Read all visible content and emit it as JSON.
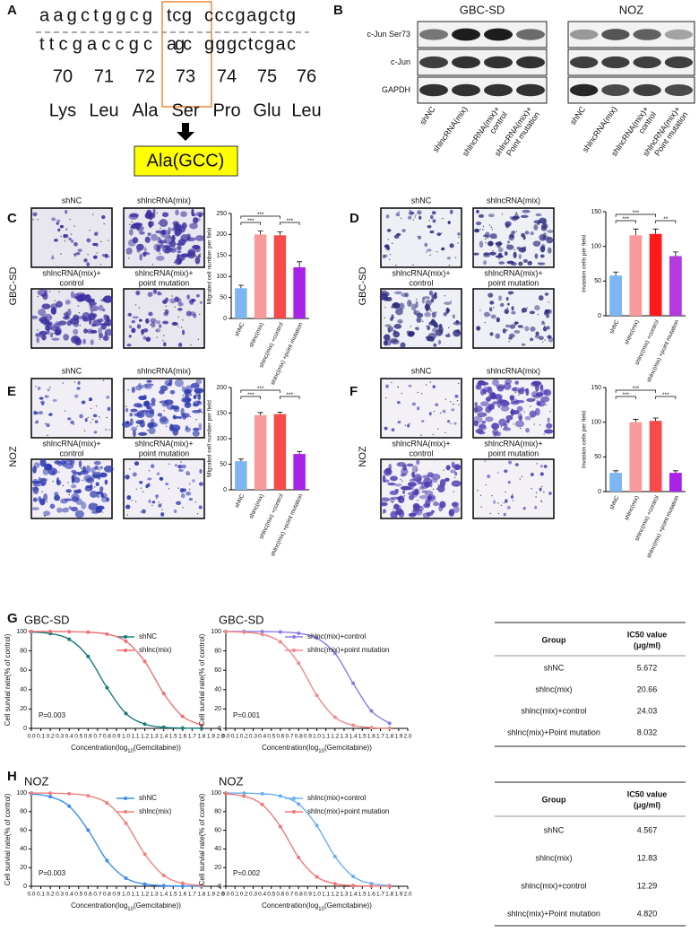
{
  "panel_labels": [
    "A",
    "B",
    "C",
    "D",
    "E",
    "F",
    "G",
    "H"
  ],
  "sequence": {
    "coding": [
      "aagctggcg",
      "tcg",
      "cccgagctg"
    ],
    "complement": [
      "ttcgaccgc",
      "agc",
      "gggctcgac"
    ],
    "codons": [
      70,
      71,
      72,
      73,
      74,
      75,
      76
    ],
    "amino_acids": [
      "Lys",
      "Leu",
      "Ala",
      "Ser",
      "Pro",
      "Glu",
      "Leu"
    ],
    "mutation": "Ala(GCC)"
  },
  "western_blot": {
    "cell_lines": [
      "GBC-SD",
      "NOZ"
    ],
    "proteins": [
      "c-Jun Ser73",
      "c-Jun",
      "GAPDH"
    ],
    "lanes": [
      [
        "shNC"
      ],
      [
        "shlncRNA(mix)"
      ],
      [
        "shlncRNA(mix)+",
        "control"
      ],
      [
        "shlncRNA(mix)+",
        "Point mutation"
      ]
    ]
  },
  "micrographs": [
    {
      "row_label": "GBC-SD",
      "labels": [
        [
          "shNC"
        ],
        [
          "shlncRNA(mix)"
        ],
        [
          "shlncRNA(mix)+",
          "control"
        ],
        [
          "shlncRNA(mix)+",
          "point mutation"
        ]
      ]
    },
    {
      "row_label": "GBC-SD",
      "labels": [
        [
          "shNC"
        ],
        [
          "shlncRNA(mix)"
        ],
        [
          "shlncRNA(mix)+",
          "control"
        ],
        [
          "shlncRNA(mix)+",
          "point mutation"
        ]
      ]
    },
    {
      "row_label": "NOZ",
      "labels": [
        [
          "shNC"
        ],
        [
          "shlncRNA(mix)"
        ],
        [
          "shlncRNA(mix)+",
          "control"
        ],
        [
          "shlncRNA(mix)+",
          "point mutation"
        ]
      ]
    },
    {
      "row_label": "NOZ",
      "labels": [
        [
          "shNC"
        ],
        [
          "shlncRNA(mix)"
        ],
        [
          "shlncRNA(mix)+",
          "control"
        ],
        [
          "shlncRNA(mix)+",
          "point mutation"
        ]
      ]
    }
  ],
  "chart_data": [
    {
      "type": "bar",
      "ylabel": "Migrated cell number per field",
      "categories": [
        "shNC",
        "shlnc(mix)",
        "shlnc(mix) +control",
        "shlnc(mix) +point mutation"
      ],
      "values": [
        72,
        200,
        198,
        122
      ],
      "errors": [
        7,
        8,
        8,
        13
      ],
      "colors": [
        "#7eb6f2",
        "#f99a9a",
        "#f94a4a",
        "#a822e8"
      ],
      "ylim": [
        0,
        250
      ],
      "yticks": [
        0,
        50,
        100,
        150,
        200,
        250
      ],
      "significance": [
        "***",
        "***",
        "***"
      ]
    },
    {
      "type": "bar",
      "ylabel": "Invasion cells per field",
      "categories": [
        "shNC",
        "shlnc(mix)",
        "shlnc(mix) +control",
        "shlnc(mix) +point mutation"
      ],
      "values": [
        58,
        116,
        118,
        86
      ],
      "errors": [
        5,
        9,
        7,
        6
      ],
      "colors": [
        "#7eb6f2",
        "#f99a9a",
        "#ff1a1a",
        "#b53ae0"
      ],
      "ylim": [
        0,
        150
      ],
      "yticks": [
        0,
        50,
        100,
        150
      ],
      "significance": [
        "***",
        "***",
        "**"
      ]
    },
    {
      "type": "bar",
      "ylabel": "Migrated cell number per field",
      "categories": [
        "shNC",
        "shlnc(mix)",
        "shlnc(mix) +control",
        "shlnc(mix) +point mutation"
      ],
      "values": [
        56,
        146,
        148,
        70
      ],
      "errors": [
        4,
        5,
        4,
        5
      ],
      "colors": [
        "#7eb6f2",
        "#f99a9a",
        "#f94a4a",
        "#a822e8"
      ],
      "ylim": [
        0,
        200
      ],
      "yticks": [
        0,
        50,
        100,
        150,
        200
      ],
      "significance": [
        "***",
        "***",
        "***"
      ]
    },
    {
      "type": "bar",
      "ylabel": "Invasion cells per field",
      "categories": [
        "shNC",
        "shlnc(mix)",
        "shlnc(mix) +control",
        "shlnc(mix) +point mutation"
      ],
      "values": [
        27,
        100,
        102,
        27
      ],
      "errors": [
        3,
        4,
        4,
        3
      ],
      "colors": [
        "#7eb6f2",
        "#f99a9a",
        "#f94a4a",
        "#a822e8"
      ],
      "ylim": [
        0,
        150
      ],
      "yticks": [
        0,
        50,
        100,
        150
      ],
      "significance": [
        "***",
        "***",
        "***"
      ]
    },
    {
      "type": "line",
      "title": "GBC-SD",
      "annotation": "P=0.003",
      "ylabel": "Cell survial rate(% of control)",
      "xlabel": [
        "Concentration(log",
        "10",
        "(Gemcitabine))"
      ],
      "x": [
        0,
        0.2,
        0.4,
        0.6,
        0.8,
        1,
        1.2,
        1.4,
        1.6,
        1.8
      ],
      "series": [
        {
          "name": "shNC",
          "color": "#197a7a",
          "values": [
            99.5,
            97.9,
            92,
            74.2,
            42,
            15.4,
            4.4,
            1.1,
            0.3,
            0.1
          ]
        },
        {
          "name": "shlnc(mix)",
          "color": "#f07070",
          "values": [
            100,
            100,
            99.8,
            99.3,
            97.3,
            89.9,
            69.1,
            36,
            12.4,
            3.4
          ]
        }
      ],
      "xlim": [
        0,
        2
      ],
      "ylim": [
        0,
        100
      ],
      "xticks": [
        {
          "value": 0,
          "label": "0.0"
        },
        0.1,
        0.2,
        0.3,
        0.4,
        0.5,
        0.6,
        0.7,
        0.8,
        0.9,
        {
          "value": 1,
          "label": "1.0"
        },
        1.1,
        1.2,
        1.3,
        1.4,
        1.5,
        1.6,
        1.7,
        1.8,
        1.9,
        {
          "value": 2,
          "label": "2.0"
        }
      ],
      "yticks": [
        0,
        20,
        40,
        60,
        80,
        100
      ]
    },
    {
      "type": "line",
      "title": "GBC-SD",
      "annotation": "P=0.001",
      "ylabel": "Cell survial rate(% of control)",
      "xlabel": [
        "Concentration(log",
        "10",
        "(Gemcitabine))"
      ],
      "x": [
        0,
        0.2,
        0.4,
        0.6,
        0.8,
        1,
        1.2,
        1.4,
        1.6,
        1.8
      ],
      "series": [
        {
          "name": "shlnc(mix)+control",
          "color": "#8a7ae8",
          "values": [
            100,
            100,
            99.9,
            99.5,
            98.2,
            93.2,
            77.6,
            46.5,
            18,
            5.2
          ]
        },
        {
          "name": "shlnc(mix)+point mutation",
          "color": "#f08a8a",
          "values": [
            99.8,
            99.2,
            97,
            89.2,
            67.4,
            34.2,
            11.5,
            3.2,
            0.8,
            0.2
          ]
        }
      ],
      "xlim": [
        0,
        2
      ],
      "ylim": [
        0,
        100
      ],
      "xticks": [
        {
          "value": 0,
          "label": "0.0"
        },
        0.1,
        0.2,
        0.3,
        0.4,
        0.5,
        0.6,
        0.7,
        0.8,
        0.9,
        {
          "value": 1,
          "label": "1.0"
        },
        1.1,
        1.2,
        1.3,
        1.4,
        1.5,
        1.6,
        1.7,
        1.8,
        1.9,
        {
          "value": 2,
          "label": "2.0"
        }
      ],
      "yticks": [
        0,
        20,
        40,
        60,
        80,
        100
      ]
    },
    {
      "type": "line",
      "title": "NOZ",
      "annotation": "P=0.003",
      "ylabel": "Cell survial rate(% of control)",
      "xlabel": [
        "Concentration(log",
        "10",
        "(Gemcitabine))"
      ],
      "x": [
        0,
        0.2,
        0.4,
        0.6,
        0.8,
        1,
        1.2,
        1.4,
        1.6,
        1.8
      ],
      "series": [
        {
          "name": "shNC",
          "color": "#3d8ee8",
          "values": [
            99,
            96,
            85.8,
            60.2,
            27.5,
            8.7,
            2.3,
            0.6,
            0.2,
            0
          ]
        },
        {
          "name": "shlnc(mix)",
          "color": "#f08080",
          "values": [
            100,
            99.8,
            99.2,
            97,
            89.3,
            67.6,
            34.4,
            11.6,
            3.2,
            0.8
          ]
        }
      ],
      "xlim": [
        0,
        2
      ],
      "ylim": [
        0,
        100
      ],
      "xticks": [
        {
          "value": 0,
          "label": "0.0"
        },
        0.1,
        0.2,
        0.3,
        0.4,
        0.5,
        0.6,
        0.7,
        0.8,
        0.9,
        {
          "value": 1,
          "label": "1.0"
        },
        1.1,
        1.2,
        1.3,
        1.4,
        1.5,
        1.6,
        1.7,
        1.8,
        1.9,
        {
          "value": 2,
          "label": "2.0"
        }
      ],
      "yticks": [
        0,
        20,
        40,
        60,
        80,
        100
      ]
    },
    {
      "type": "line",
      "title": "NOZ",
      "annotation": "P=0.002",
      "ylabel": "Cell survial rate(% of control)",
      "xlabel": [
        "Concentration(log",
        "10",
        "(Gemcitabine))"
      ],
      "x": [
        0,
        0.2,
        0.4,
        0.6,
        0.8,
        1,
        1.2,
        1.4,
        1.6,
        1.8
      ],
      "series": [
        {
          "name": "shlnc(mix)+control",
          "color": "#6ab0f0",
          "values": [
            100,
            99.8,
            99.2,
            96.7,
            88.1,
            65.1,
            31.9,
            10.5,
            2.9,
            0.7
          ]
        },
        {
          "name": "shlnc(mix)+point mutation",
          "color": "#f07878",
          "values": [
            99.1,
            96.6,
            87.6,
            64,
            30.9,
            10.1,
            2.7,
            0.7,
            0.2,
            0
          ]
        }
      ],
      "xlim": [
        0,
        2
      ],
      "ylim": [
        0,
        100
      ],
      "xticks": [
        {
          "value": 0,
          "label": "0.0"
        },
        0.1,
        0.2,
        0.3,
        0.4,
        0.5,
        0.6,
        0.7,
        0.8,
        0.9,
        {
          "value": 1,
          "label": "1.0"
        },
        1.1,
        1.2,
        1.3,
        1.4,
        1.5,
        1.6,
        1.7,
        1.8,
        1.9,
        {
          "value": 2,
          "label": "2.0"
        }
      ],
      "yticks": [
        0,
        20,
        40,
        60,
        80,
        100
      ]
    }
  ],
  "tables": [
    {
      "header": {
        "group": "Group",
        "value": [
          "IC50 value",
          "(μg/ml)"
        ]
      },
      "rows": [
        [
          "shNC",
          "5.672"
        ],
        [
          "shlnc(mix)",
          "20.66"
        ],
        [
          "shlnc(mix)+control",
          "24.03"
        ],
        [
          "shlnc(mix)+Point mutation",
          "8.032"
        ]
      ]
    },
    {
      "header": {
        "group": "Group",
        "value": [
          "IC50 value",
          "(μg/ml)"
        ]
      },
      "rows": [
        [
          "shNC",
          "4.567"
        ],
        [
          "shlnc(mix)",
          "12.83"
        ],
        [
          "shlnc(mix)+control",
          "12.29"
        ],
        [
          "shlnc(mix)+Point mutation",
          "4.820"
        ]
      ]
    }
  ]
}
